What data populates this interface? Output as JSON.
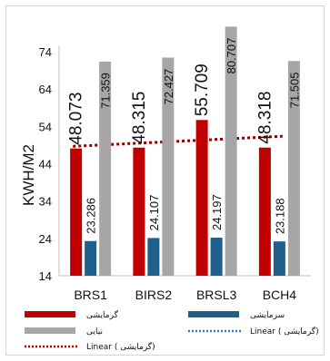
{
  "chart_data": {
    "type": "bar",
    "title": "",
    "xlabel": "",
    "ylabel": "KWH/M2",
    "ylim": [
      14,
      80
    ],
    "yticks": [
      14,
      24,
      34,
      44,
      54,
      64,
      74
    ],
    "grid": false,
    "legend_position": "bottom",
    "categories": [
      "BRS1",
      "BIRS2",
      "BRSL3",
      "BCH4"
    ],
    "series": [
      {
        "name": "گرمایشی",
        "color": "#c00000",
        "values": [
          48.073,
          48.315,
          55.709,
          48.318
        ]
      },
      {
        "name": "سرمایشی",
        "color": "#1f5f8b",
        "values": [
          23.286,
          24.107,
          24.197,
          23.188
        ]
      },
      {
        "name": "نیایی",
        "color": "#a6a6a6",
        "values": [
          71.359,
          72.427,
          80.707,
          71.505
        ]
      }
    ],
    "data_labels": {
      "series_0": [
        "48.073",
        "48.315",
        "55.709",
        "48.318"
      ],
      "series_1": [
        "23.286",
        "24.107",
        "24.197",
        "23.188"
      ],
      "series_2": [
        "71.359",
        "72.427",
        "80.707",
        "71.505"
      ]
    },
    "trendlines": [
      {
        "name": "Linear ( گرمایشی)",
        "of_series": "گرمایشی",
        "color": "#c00000",
        "style": "dotted"
      },
      {
        "name": "Linear ( گرمایشی)",
        "of_series": "سرمایشی",
        "color": "#2e75b6",
        "style": "dotted"
      }
    ]
  }
}
